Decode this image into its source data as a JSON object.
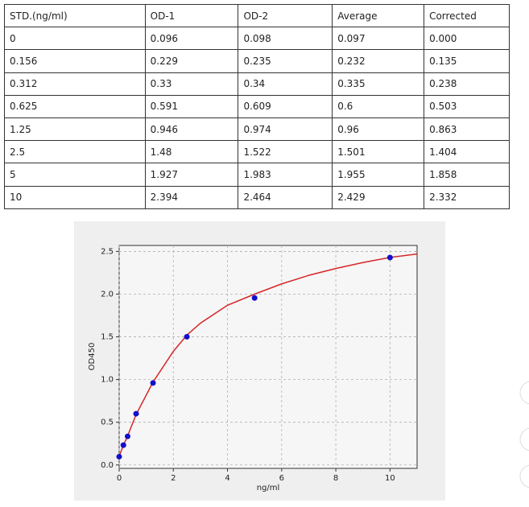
{
  "table": {
    "header": [
      "STD.(ng/ml)",
      "OD-1",
      "OD-2",
      "Average",
      "Corrected"
    ],
    "rows": [
      [
        "0",
        "0.096",
        "0.098",
        "0.097",
        "0.000"
      ],
      [
        "0.156",
        "0.229",
        "0.235",
        "0.232",
        "0.135"
      ],
      [
        "0.312",
        "0.33",
        "0.34",
        "0.335",
        "0.238"
      ],
      [
        "0.625",
        "0.591",
        "0.609",
        "0.6",
        "0.503"
      ],
      [
        "1.25",
        "0.946",
        "0.974",
        "0.96",
        "0.863"
      ],
      [
        "2.5",
        "1.48",
        "1.522",
        "1.501",
        "1.404"
      ],
      [
        "5",
        "1.927",
        "1.983",
        "1.955",
        "1.858"
      ],
      [
        "10",
        "2.394",
        "2.464",
        "2.429",
        "2.332"
      ]
    ]
  },
  "chart_data": {
    "type": "scatter",
    "x": [
      0,
      0.156,
      0.312,
      0.625,
      1.25,
      2.5,
      5,
      10
    ],
    "values": [
      0.097,
      0.232,
      0.335,
      0.6,
      0.96,
      1.501,
      1.955,
      2.429
    ],
    "color": "#1010cc",
    "fit": {
      "x": [
        0,
        0.156,
        0.312,
        0.625,
        1.25,
        2,
        2.5,
        3,
        4,
        5,
        6,
        7,
        8,
        9,
        10,
        11
      ],
      "values": [
        0.1,
        0.23,
        0.34,
        0.59,
        0.97,
        1.33,
        1.52,
        1.66,
        1.87,
        2.0,
        2.12,
        2.22,
        2.3,
        2.37,
        2.43,
        2.47
      ],
      "color": "#d62728"
    },
    "xlabel": "ng/ml",
    "ylabel": "OD450",
    "xlim": [
      0,
      11
    ],
    "ylim": [
      -0.04,
      2.57
    ],
    "xticks": [
      0,
      2,
      4,
      6,
      8,
      10
    ],
    "yticks": [
      {
        "value": 0,
        "label": "0.0"
      },
      {
        "value": 0.5,
        "label": "0.5"
      },
      {
        "value": 1,
        "label": "1.0"
      },
      {
        "value": 1.5,
        "label": "1.5"
      },
      {
        "value": 2,
        "label": "2.0"
      },
      {
        "value": 2.5,
        "label": "2.5"
      }
    ],
    "grid": true
  }
}
